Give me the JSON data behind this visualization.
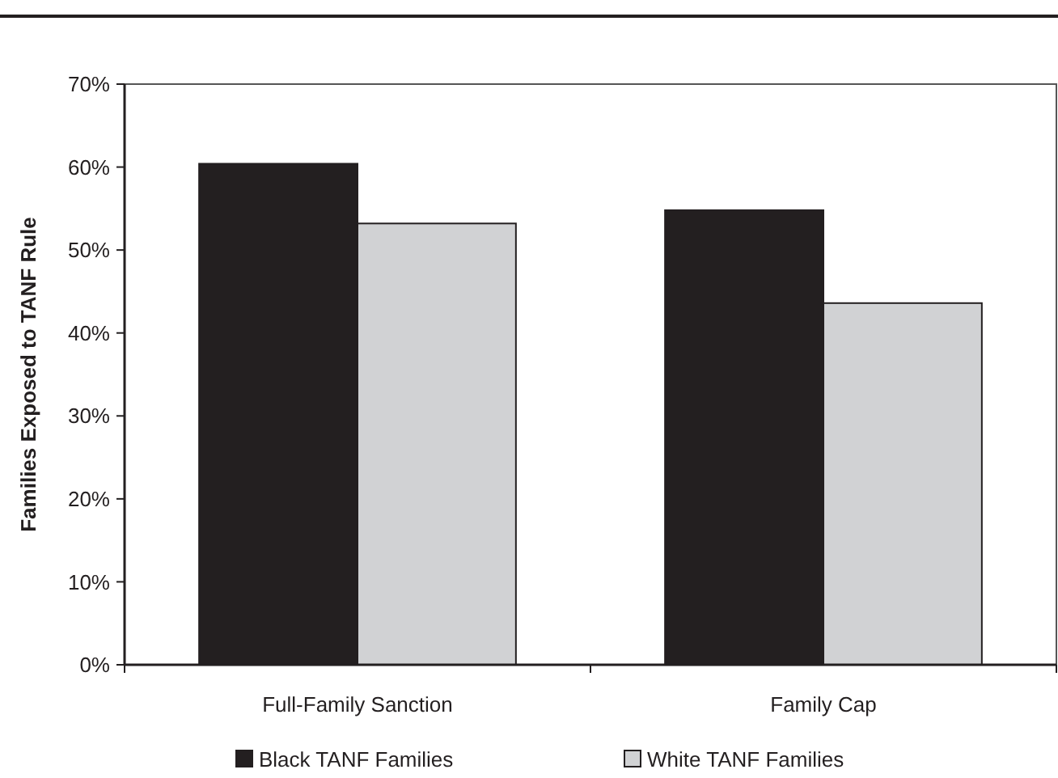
{
  "chart_data": {
    "type": "bar",
    "ylabel": "Families Exposed to TANF Rule",
    "categories": [
      "Full-Family Sanction",
      "Family Cap"
    ],
    "series": [
      {
        "name": "Black TANF Families",
        "color": "#231f20",
        "values": [
          60.4,
          54.8
        ]
      },
      {
        "name": "White TANF Families",
        "color": "#d1d2d4",
        "values": [
          53.2,
          43.6
        ]
      }
    ],
    "ylim": [
      0,
      70
    ],
    "yticks": [
      {
        "value": 0,
        "label": "0%"
      },
      {
        "value": 10,
        "label": "10%"
      },
      {
        "value": 20,
        "label": "20%"
      },
      {
        "value": 30,
        "label": "30%"
      },
      {
        "value": 40,
        "label": "40%"
      },
      {
        "value": 50,
        "label": "50%"
      },
      {
        "value": 60,
        "label": "60%"
      },
      {
        "value": 70,
        "label": "70%"
      }
    ],
    "grid": false,
    "legend": "bottom"
  }
}
